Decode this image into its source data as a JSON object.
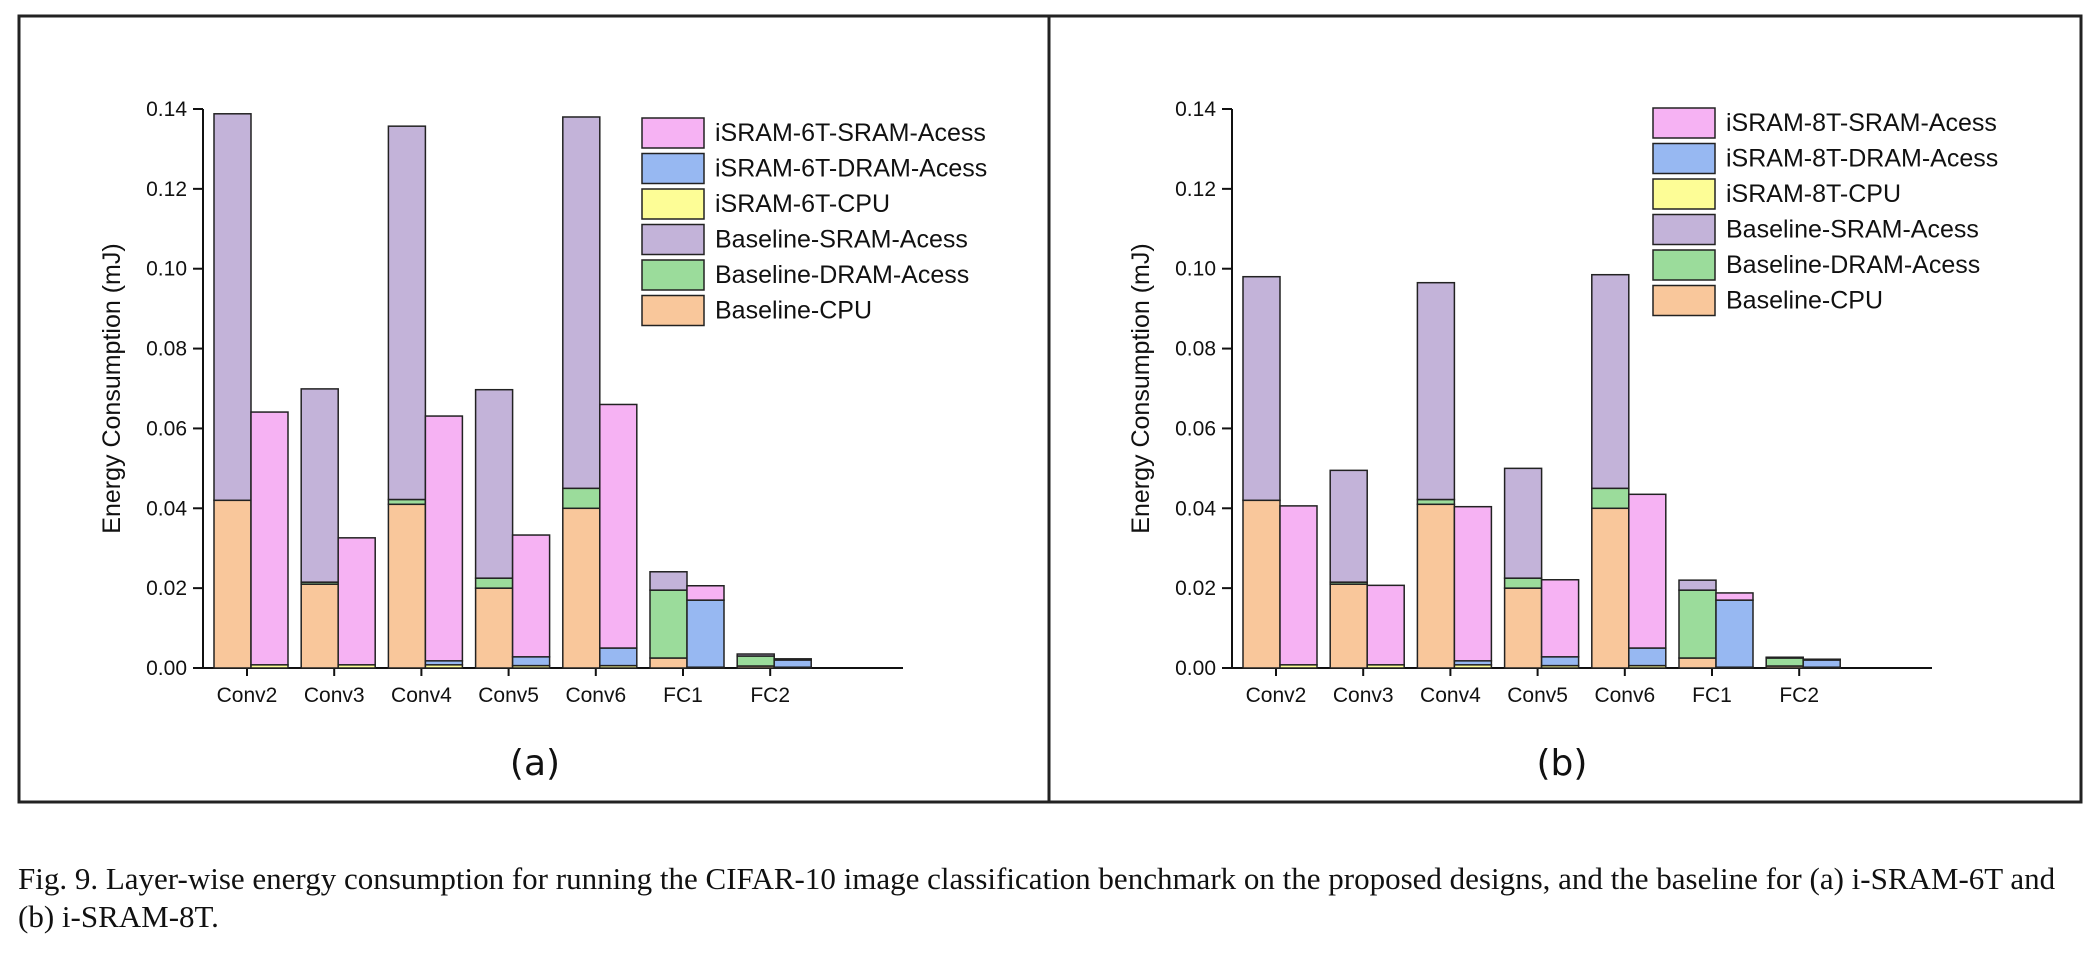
{
  "caption": "Fig. 9.   Layer-wise energy consumption for running the CIFAR-10 image classification benchmark on the proposed designs, and the baseline for (a) i-SRAM-6T and (b) i-SRAM-8T.",
  "colors": {
    "isram_sram": "#f6b2f3",
    "isram_dram": "#97b8f2",
    "isram_cpu": "#fdfd96",
    "baseline_sram": "#c3b3d9",
    "baseline_dram": "#9bdc9b",
    "baseline_cpu": "#f9c79b"
  },
  "chart_data": [
    {
      "type": "bar",
      "stacked": true,
      "panel_label": "(a)",
      "ylabel": "Energy Consumption (mJ)",
      "xlabel": "",
      "ylim": [
        0,
        0.14
      ],
      "yticks": [
        "0.00",
        "0.02",
        "0.04",
        "0.06",
        "0.08",
        "0.10",
        "0.12",
        "0.14"
      ],
      "categories": [
        "Conv2",
        "Conv3",
        "Conv4",
        "Conv5",
        "Conv6",
        "FC1",
        "FC2"
      ],
      "legend_position": "top-right",
      "legend": [
        "iSRAM-6T-SRAM-Acess",
        "iSRAM-6T-DRAM-Acess",
        "iSRAM-6T-CPU",
        "Baseline-SRAM-Acess",
        "Baseline-DRAM-Acess",
        "Baseline-CPU"
      ],
      "baseline": {
        "cpu": [
          0.042,
          0.021,
          0.041,
          0.02,
          0.04,
          0.0025,
          0.0005
        ],
        "dram": [
          0.0,
          0.0005,
          0.0012,
          0.0025,
          0.005,
          0.017,
          0.0025
        ],
        "sram": [
          0.0968,
          0.0484,
          0.0935,
          0.0472,
          0.093,
          0.0046,
          0.0005
        ]
      },
      "isram": {
        "cpu": [
          0.0008,
          0.0008,
          0.0008,
          0.0006,
          0.0006,
          0.0002,
          0.0002
        ],
        "dram": [
          0.0,
          0.0,
          0.001,
          0.0022,
          0.0044,
          0.0168,
          0.0018
        ],
        "sram": [
          0.0633,
          0.0318,
          0.0613,
          0.0305,
          0.061,
          0.0036,
          0.0003
        ]
      }
    },
    {
      "type": "bar",
      "stacked": true,
      "panel_label": "(b)",
      "ylabel": "Energy Consumption (mJ)",
      "xlabel": "",
      "ylim": [
        0,
        0.14
      ],
      "yticks": [
        "0.00",
        "0.02",
        "0.04",
        "0.06",
        "0.08",
        "0.10",
        "0.12",
        "0.14"
      ],
      "categories": [
        "Conv2",
        "Conv3",
        "Conv4",
        "Conv5",
        "Conv6",
        "FC1",
        "FC2"
      ],
      "legend_position": "top-right",
      "legend": [
        "iSRAM-8T-SRAM-Acess",
        "iSRAM-8T-DRAM-Acess",
        "iSRAM-8T-CPU",
        "Baseline-SRAM-Acess",
        "Baseline-DRAM-Acess",
        "Baseline-CPU"
      ],
      "baseline": {
        "cpu": [
          0.042,
          0.021,
          0.041,
          0.02,
          0.04,
          0.0025,
          0.0005
        ],
        "dram": [
          0.0,
          0.0005,
          0.0012,
          0.0025,
          0.005,
          0.017,
          0.002
        ],
        "sram": [
          0.056,
          0.028,
          0.0543,
          0.0275,
          0.0535,
          0.0025,
          0.0002
        ]
      },
      "isram": {
        "cpu": [
          0.0008,
          0.0008,
          0.0008,
          0.0006,
          0.0006,
          0.0002,
          0.0002
        ],
        "dram": [
          0.0,
          0.0,
          0.001,
          0.0022,
          0.0044,
          0.0168,
          0.0018
        ],
        "sram": [
          0.0398,
          0.0199,
          0.0386,
          0.0193,
          0.0385,
          0.0018,
          0.0002
        ]
      }
    }
  ]
}
